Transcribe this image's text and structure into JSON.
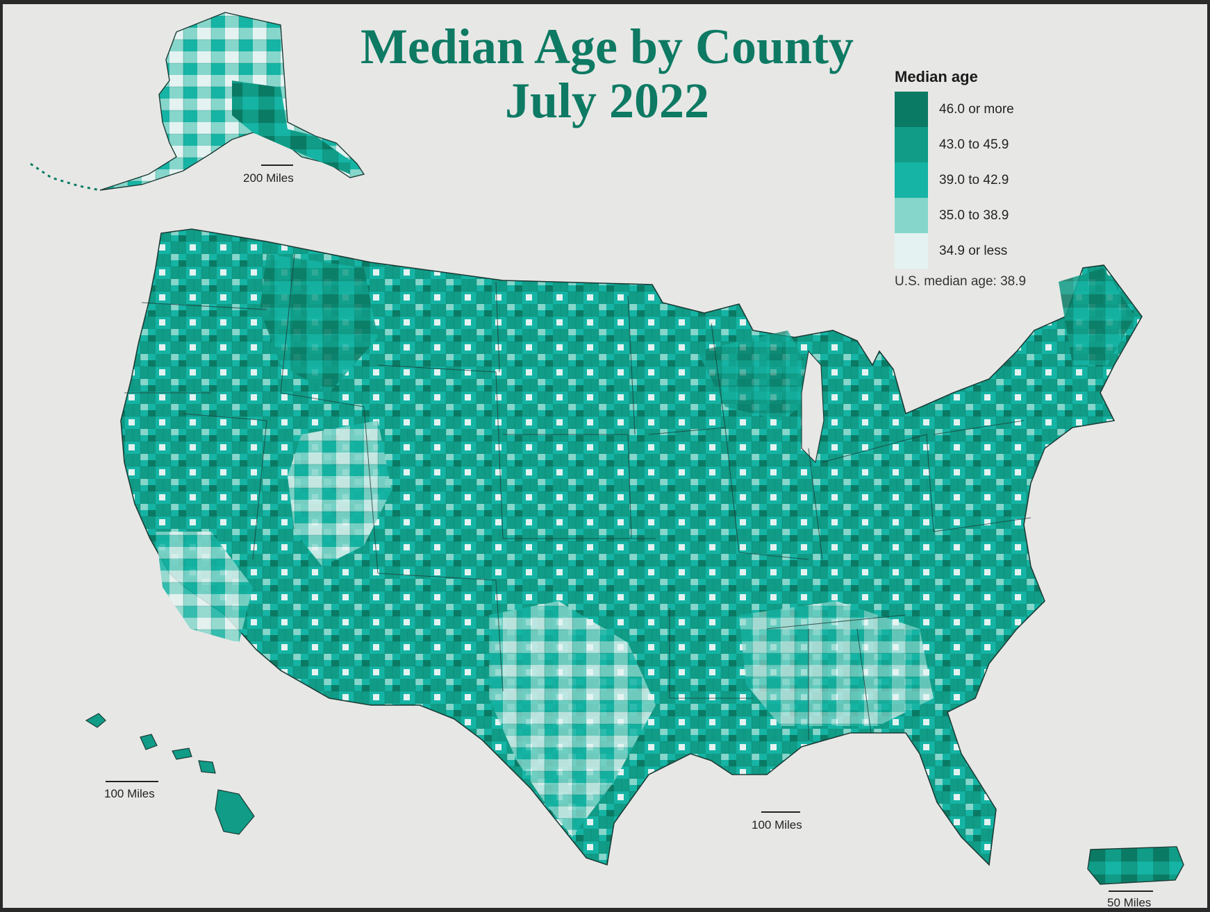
{
  "title_line1": "Median Age by County",
  "title_line2": "July 2022",
  "legend": {
    "title": "Median age",
    "items": [
      {
        "label": "46.0 or more",
        "color": "#0b7a64"
      },
      {
        "label": "43.0 to 45.9",
        "color": "#109c87"
      },
      {
        "label": "39.0 to 42.9",
        "color": "#15b4a4"
      },
      {
        "label": "35.0 to 38.9",
        "color": "#86d6cb"
      },
      {
        "label": "34.9 or less",
        "color": "#e4f3f1"
      }
    ],
    "note": "U.S. median age: 38.9"
  },
  "scale_bars": {
    "alaska": "200 Miles",
    "hawaii": "100 Miles",
    "conus": "100 Miles",
    "puerto_rico": "50 Miles"
  }
}
